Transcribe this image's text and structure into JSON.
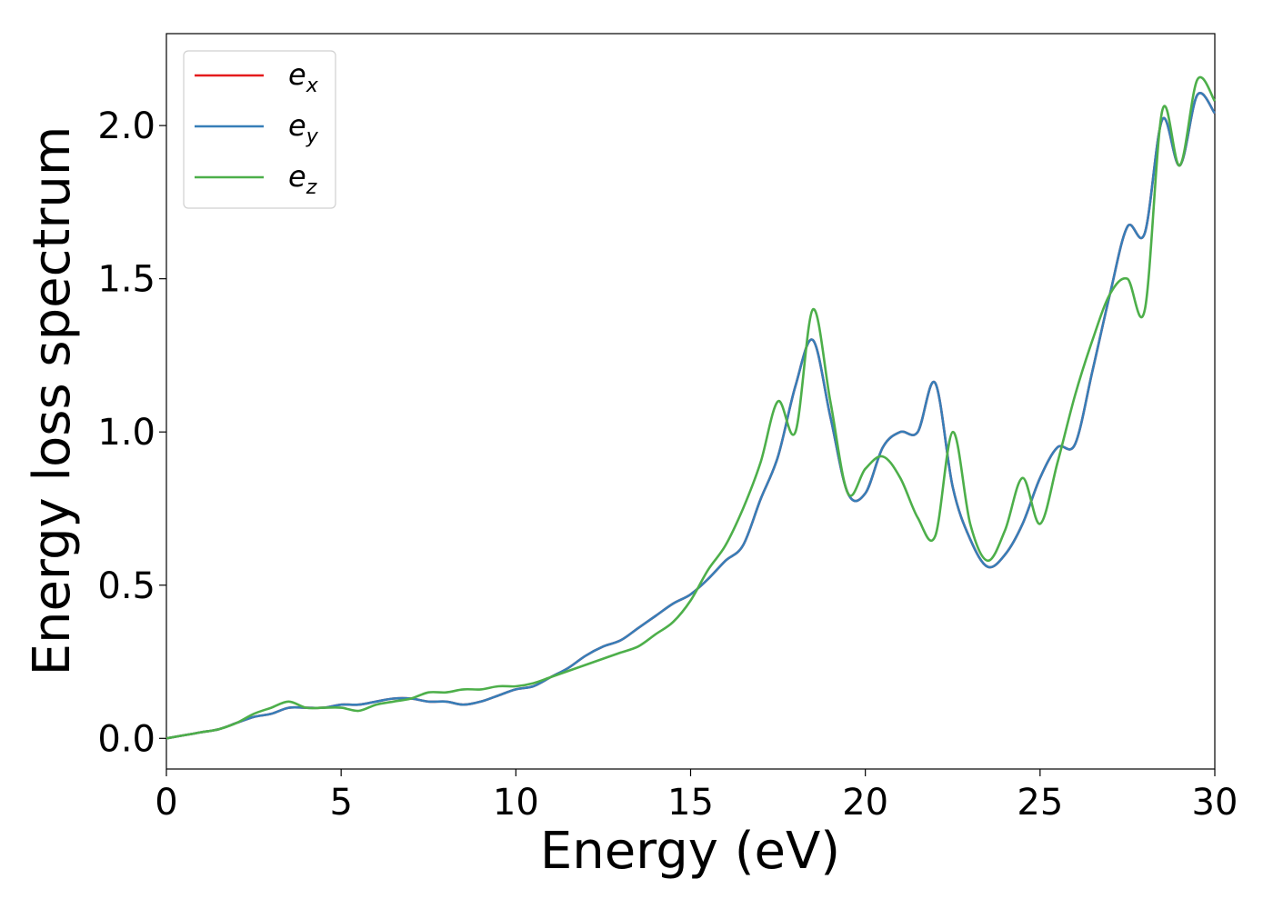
{
  "chart_data": {
    "type": "line",
    "xlabel": "Energy (eV)",
    "ylabel": "Energy loss spectrum",
    "xlim": [
      0,
      30
    ],
    "ylim": [
      -0.1,
      2.3
    ],
    "xticks": [
      0,
      5,
      10,
      15,
      20,
      25,
      30
    ],
    "xtick_labels": [
      "0",
      "5",
      "10",
      "15",
      "20",
      "25",
      "30"
    ],
    "yticks": [
      0.0,
      0.5,
      1.0,
      1.5,
      2.0
    ],
    "ytick_labels": [
      "0.0",
      "0.5",
      "1.0",
      "1.5",
      "2.0"
    ],
    "grid": false,
    "legend_position": "top-left",
    "series": [
      {
        "name": "e_x",
        "label_main": "e",
        "label_sub": "x",
        "color": "#e41a1c",
        "x": [
          0,
          0.5,
          1,
          1.5,
          2,
          2.5,
          3,
          3.5,
          4,
          4.5,
          5,
          5.5,
          6,
          6.5,
          7,
          7.5,
          8,
          8.5,
          9,
          9.5,
          10,
          10.5,
          11,
          11.5,
          12,
          12.5,
          13,
          13.5,
          14,
          14.5,
          15,
          15.5,
          16,
          16.5,
          17,
          17.5,
          18,
          18.5,
          19,
          19.5,
          20,
          20.5,
          21,
          21.5,
          22,
          22.5,
          23,
          23.5,
          24,
          24.5,
          25,
          25.5,
          26,
          26.5,
          27,
          27.5,
          28,
          28.5,
          29,
          29.5,
          30
        ],
        "y": [
          0,
          0.01,
          0.02,
          0.03,
          0.05,
          0.07,
          0.08,
          0.1,
          0.1,
          0.1,
          0.11,
          0.11,
          0.12,
          0.13,
          0.13,
          0.12,
          0.12,
          0.11,
          0.12,
          0.14,
          0.16,
          0.17,
          0.2,
          0.23,
          0.27,
          0.3,
          0.32,
          0.36,
          0.4,
          0.44,
          0.47,
          0.52,
          0.58,
          0.63,
          0.78,
          0.92,
          1.15,
          1.3,
          1.05,
          0.8,
          0.8,
          0.95,
          1.0,
          1.0,
          1.16,
          0.82,
          0.65,
          0.56,
          0.6,
          0.7,
          0.85,
          0.95,
          0.96,
          1.2,
          1.45,
          1.67,
          1.65,
          2.02,
          1.87,
          2.1,
          2.04
        ]
      },
      {
        "name": "e_y",
        "label_main": "e",
        "label_sub": "y",
        "color": "#377eb8",
        "x": [
          0,
          0.5,
          1,
          1.5,
          2,
          2.5,
          3,
          3.5,
          4,
          4.5,
          5,
          5.5,
          6,
          6.5,
          7,
          7.5,
          8,
          8.5,
          9,
          9.5,
          10,
          10.5,
          11,
          11.5,
          12,
          12.5,
          13,
          13.5,
          14,
          14.5,
          15,
          15.5,
          16,
          16.5,
          17,
          17.5,
          18,
          18.5,
          19,
          19.5,
          20,
          20.5,
          21,
          21.5,
          22,
          22.5,
          23,
          23.5,
          24,
          24.5,
          25,
          25.5,
          26,
          26.5,
          27,
          27.5,
          28,
          28.5,
          29,
          29.5,
          30
        ],
        "y": [
          0,
          0.01,
          0.02,
          0.03,
          0.05,
          0.07,
          0.08,
          0.1,
          0.1,
          0.1,
          0.11,
          0.11,
          0.12,
          0.13,
          0.13,
          0.12,
          0.12,
          0.11,
          0.12,
          0.14,
          0.16,
          0.17,
          0.2,
          0.23,
          0.27,
          0.3,
          0.32,
          0.36,
          0.4,
          0.44,
          0.47,
          0.52,
          0.58,
          0.63,
          0.78,
          0.92,
          1.15,
          1.3,
          1.05,
          0.8,
          0.8,
          0.95,
          1.0,
          1.0,
          1.16,
          0.82,
          0.65,
          0.56,
          0.6,
          0.7,
          0.85,
          0.95,
          0.96,
          1.2,
          1.45,
          1.67,
          1.65,
          2.02,
          1.87,
          2.1,
          2.04
        ]
      },
      {
        "name": "e_z",
        "label_main": "e",
        "label_sub": "z",
        "color": "#4daf4a",
        "x": [
          0,
          0.5,
          1,
          1.5,
          2,
          2.5,
          3,
          3.5,
          4,
          4.5,
          5,
          5.5,
          6,
          6.5,
          7,
          7.5,
          8,
          8.5,
          9,
          9.5,
          10,
          10.5,
          11,
          11.5,
          12,
          12.5,
          13,
          13.5,
          14,
          14.5,
          15,
          15.5,
          16,
          16.5,
          17,
          17.5,
          18,
          18.5,
          19,
          19.5,
          20,
          20.5,
          21,
          21.5,
          22,
          22.5,
          23,
          23.5,
          24,
          24.5,
          25,
          25.5,
          26,
          26.5,
          27,
          27.5,
          28,
          28.5,
          29,
          29.5,
          30
        ],
        "y": [
          0,
          0.01,
          0.02,
          0.03,
          0.05,
          0.08,
          0.1,
          0.12,
          0.1,
          0.1,
          0.1,
          0.09,
          0.11,
          0.12,
          0.13,
          0.15,
          0.15,
          0.16,
          0.16,
          0.17,
          0.17,
          0.18,
          0.2,
          0.22,
          0.24,
          0.26,
          0.28,
          0.3,
          0.34,
          0.38,
          0.45,
          0.55,
          0.63,
          0.75,
          0.9,
          1.1,
          1.0,
          1.4,
          1.1,
          0.8,
          0.88,
          0.92,
          0.85,
          0.72,
          0.66,
          1.0,
          0.7,
          0.58,
          0.68,
          0.85,
          0.7,
          0.9,
          1.12,
          1.3,
          1.45,
          1.5,
          1.4,
          2.05,
          1.87,
          2.15,
          2.08
        ]
      }
    ]
  }
}
